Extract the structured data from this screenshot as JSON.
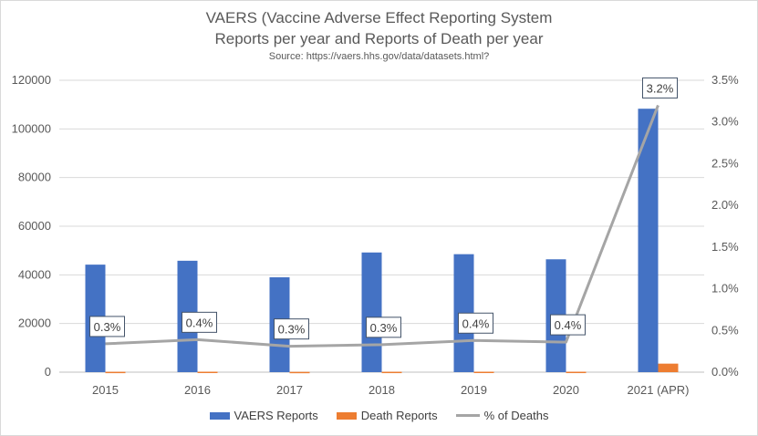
{
  "chart_data": {
    "type": "bar",
    "title": "VAERS (Vaccine Adverse Effect Reporting System",
    "subtitle": "Reports per year and Reports of Death per year",
    "source": "Source: https://vaers.hhs.gov/data/datasets.html?",
    "categories": [
      "2015",
      "2016",
      "2017",
      "2018",
      "2019",
      "2020",
      "2021 (APR)"
    ],
    "series": [
      {
        "name": "VAERS Reports",
        "type": "bar",
        "axis": "left",
        "color": "#4472c4",
        "values": [
          44200,
          45800,
          39000,
          49200,
          48500,
          46400,
          108300
        ]
      },
      {
        "name": "Death Reports",
        "type": "bar",
        "axis": "left",
        "color": "#ed7d31",
        "values": [
          150,
          180,
          120,
          160,
          180,
          170,
          3500
        ]
      },
      {
        "name": "% of Deaths",
        "type": "line",
        "axis": "right",
        "color": "#a5a5a5",
        "values": [
          0.0034,
          0.0039,
          0.0031,
          0.0033,
          0.0038,
          0.0036,
          0.032
        ],
        "data_labels": [
          "0.3%",
          "0.4%",
          "0.3%",
          "0.3%",
          "0.4%",
          "0.4%",
          "3.2%"
        ]
      }
    ],
    "y_left": {
      "ylim": [
        0,
        120000
      ],
      "ticks": [
        "0",
        "20000",
        "40000",
        "60000",
        "80000",
        "100000",
        "120000"
      ]
    },
    "y_right": {
      "ylim": [
        0,
        0.035
      ],
      "ticks": [
        "0.0%",
        "0.5%",
        "1.0%",
        "1.5%",
        "2.0%",
        "2.5%",
        "3.0%",
        "3.5%"
      ]
    },
    "grid": true,
    "legend_position": "bottom"
  }
}
